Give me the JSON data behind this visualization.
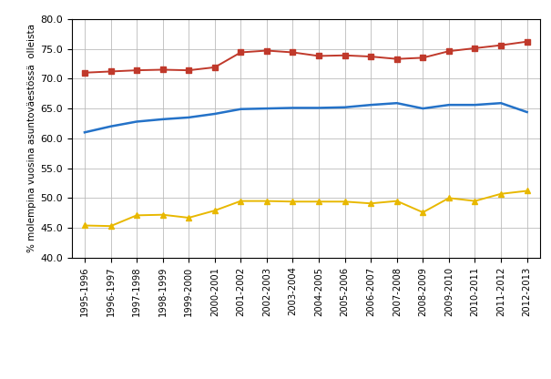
{
  "categories": [
    "1995-1996",
    "1996-1997",
    "1997-1998",
    "1998-1999",
    "1999-2000",
    "2000-2001",
    "2001-2002",
    "2002-2003",
    "2003-2004",
    "2004-2005",
    "2005-2006",
    "2006-2007",
    "2007-2008",
    "2008-2009",
    "2009-2010",
    "2010-2011",
    "2011-2012",
    "2012-2013"
  ],
  "red": [
    71.0,
    71.2,
    71.4,
    71.5,
    71.4,
    71.9,
    74.4,
    74.7,
    74.4,
    73.8,
    73.9,
    73.7,
    73.3,
    73.5,
    74.6,
    75.1,
    75.6,
    76.2
  ],
  "blue": [
    61.0,
    62.0,
    62.8,
    63.2,
    63.5,
    64.1,
    64.9,
    65.0,
    65.1,
    65.1,
    65.2,
    65.6,
    65.9,
    65.0,
    65.6,
    65.6,
    65.9,
    64.4
  ],
  "yellow": [
    45.4,
    45.3,
    47.1,
    47.2,
    46.7,
    47.9,
    49.5,
    49.5,
    49.4,
    49.4,
    49.4,
    49.1,
    49.5,
    47.6,
    50.0,
    49.5,
    50.7,
    51.2
  ],
  "red_color": "#c0392b",
  "blue_color": "#2472c8",
  "yellow_color": "#e8b800",
  "ylabel": "% molempina vuosina asuntoväestössä  olleista",
  "ylim": [
    40.0,
    80.0
  ],
  "yticks": [
    40.0,
    45.0,
    50.0,
    55.0,
    60.0,
    65.0,
    70.0,
    75.0,
    80.0
  ],
  "background_color": "#ffffff",
  "grid_color": "#bbbbbb"
}
